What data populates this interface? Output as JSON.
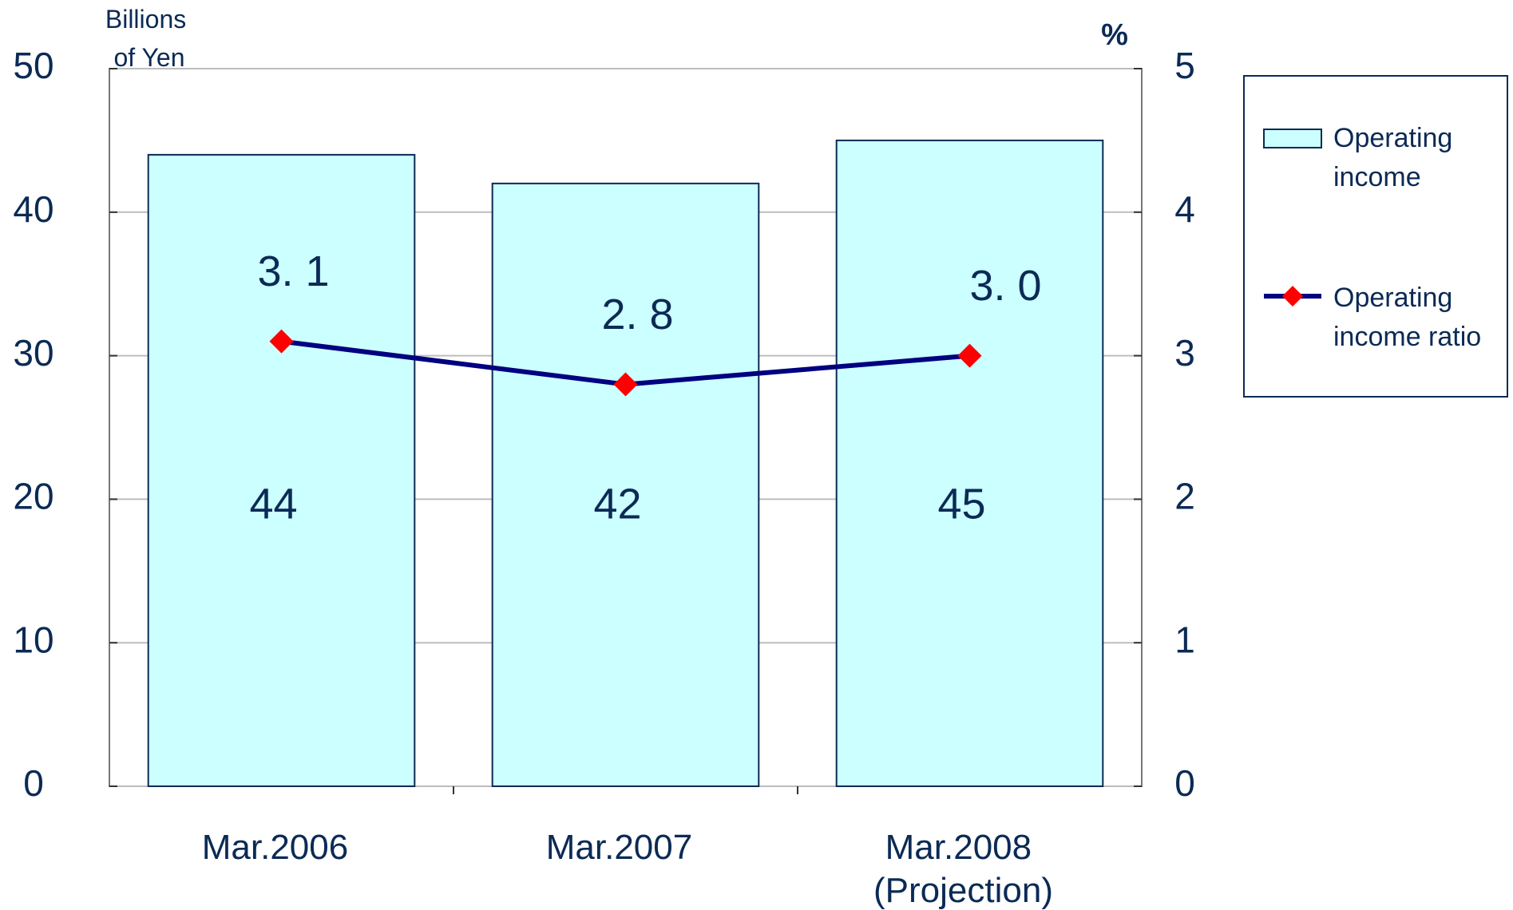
{
  "chart_data": {
    "type": "bar",
    "y_label": "Billions of Yen",
    "y2_label": "%",
    "categories": [
      "Mar.2006",
      "Mar.2007",
      "Mar.2008 (Projection)"
    ],
    "series": [
      {
        "name": "Operating income",
        "type": "bar",
        "color": "#ccffff",
        "values": [
          44,
          42,
          45
        ]
      },
      {
        "name": "Operating income ratio",
        "type": "line",
        "axis": "y2",
        "color": "#000080",
        "marker_color": "#ff0000",
        "values": [
          3.1,
          2.8,
          3.0
        ],
        "value_labels": [
          "3. 1",
          "2. 8",
          "3. 0"
        ]
      }
    ],
    "ylim": [
      0,
      50
    ],
    "yticks": [
      0,
      10,
      20,
      30,
      40,
      50
    ],
    "y2lim": [
      0,
      5
    ],
    "y2ticks": [
      0,
      1,
      2,
      3,
      4,
      5
    ],
    "grid": true,
    "legend": "right"
  }
}
